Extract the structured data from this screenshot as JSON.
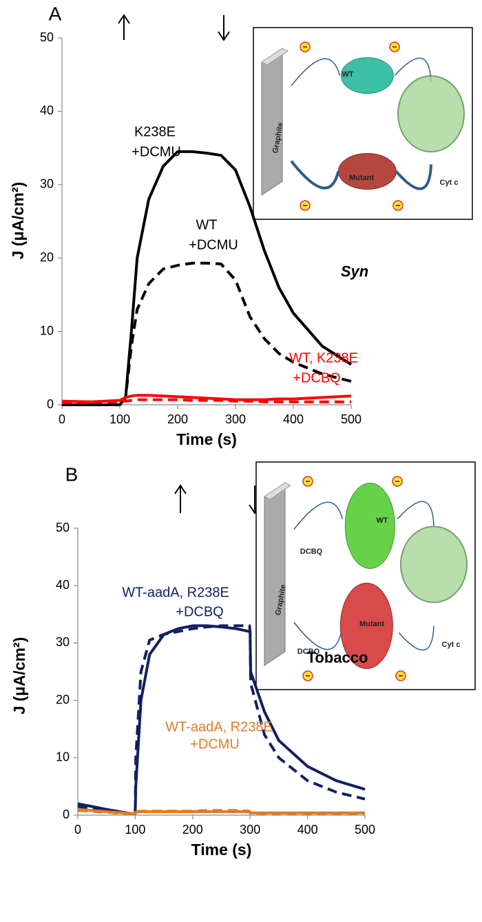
{
  "chart_data": [
    {
      "type": "line",
      "panel_label": "A",
      "xlabel": "Time (s)",
      "ylabel": "J (μA/cm²)",
      "xlim": [
        0,
        500
      ],
      "xticks": [
        0,
        100,
        200,
        300,
        400,
        500
      ],
      "ylim": [
        0,
        50
      ],
      "yticks": [
        0,
        10,
        20,
        30,
        40,
        50
      ],
      "x": [
        0,
        50,
        100,
        110,
        120,
        130,
        150,
        175,
        200,
        225,
        250,
        275,
        300,
        325,
        350,
        375,
        400,
        450,
        500
      ],
      "series": [
        {
          "color": "#000000",
          "dash": false,
          "values": [
            0,
            0,
            0,
            1,
            10,
            20,
            28,
            32.5,
            34.5,
            34.5,
            34.3,
            34,
            32,
            27,
            21,
            16,
            12.5,
            8,
            5.5
          ]
        },
        {
          "color": "#000000",
          "dash": true,
          "values": [
            0,
            0,
            0,
            1,
            8,
            13,
            16.5,
            18.5,
            19,
            19.3,
            19.3,
            19.2,
            17,
            12,
            9,
            7,
            5.8,
            4.2,
            3.2
          ]
        },
        {
          "color": "#ff0000",
          "dash": false,
          "values": [
            0.5,
            0.4,
            0.6,
            1,
            1.2,
            1.3,
            1.3,
            1.2,
            1.1,
            1,
            0.9,
            0.8,
            0.7,
            0.7,
            0.7,
            0.8,
            0.8,
            1,
            1.2
          ]
        },
        {
          "color": "#ff0000",
          "dash": true,
          "values": [
            0.3,
            0.3,
            0.4,
            0.5,
            0.6,
            0.7,
            0.7,
            0.7,
            0.7,
            0.6,
            0.6,
            0.6,
            0.5,
            0.5,
            0.4,
            0.4,
            0.4,
            0.4,
            0.4
          ]
        }
      ],
      "annotations": [
        {
          "lines": [
            "K238E",
            "+DCMU"
          ],
          "color": "#000000"
        },
        {
          "lines": [
            "WT",
            "+DCMU"
          ],
          "color": "#000000"
        },
        {
          "lines": [
            "WT, K238E",
            "+DCBQ"
          ],
          "color": "#ff0000"
        },
        {
          "lines": [
            "Syn"
          ],
          "color": "#000000"
        }
      ],
      "inset_labels": [
        "WT",
        "Graphite",
        "Mutant",
        "Cyt c"
      ]
    },
    {
      "type": "line",
      "panel_label": "B",
      "xlabel": "Time (s)",
      "ylabel": "J (μA/cm²)",
      "xlim": [
        0,
        500
      ],
      "xticks": [
        0,
        100,
        200,
        300,
        400,
        500
      ],
      "ylim": [
        0,
        50
      ],
      "yticks": [
        0,
        10,
        20,
        30,
        40,
        50
      ],
      "x": [
        0,
        50,
        90,
        100,
        101,
        110,
        125,
        150,
        175,
        200,
        225,
        250,
        275,
        299,
        300,
        301,
        325,
        350,
        400,
        450,
        500
      ],
      "series": [
        {
          "color": "#0f2160",
          "dash": false,
          "values": [
            2,
            1,
            0.3,
            0.3,
            5,
            20,
            28,
            31.5,
            32.5,
            33,
            33,
            32.8,
            32.5,
            32,
            32,
            25,
            18,
            13,
            8.5,
            6,
            4.5
          ]
        },
        {
          "color": "#0f2160",
          "dash": true,
          "values": [
            1.5,
            0.8,
            0.3,
            0.3,
            10,
            25,
            30.5,
            31.5,
            32,
            32.5,
            32.8,
            33,
            33,
            33,
            32,
            23,
            14,
            10,
            6,
            4,
            2.8
          ]
        },
        {
          "color": "#e07b22",
          "dash": false,
          "values": [
            1,
            0.6,
            0.3,
            0.3,
            0.5,
            0.6,
            0.6,
            0.6,
            0.6,
            0.6,
            0.6,
            0.6,
            0.6,
            0.6,
            0.4,
            0.4,
            0.4,
            0.4,
            0.4,
            0.4,
            0.4
          ]
        },
        {
          "color": "#e07b22",
          "dash": true,
          "values": [
            0.8,
            0.5,
            0.2,
            0.3,
            0.6,
            0.7,
            0.7,
            0.7,
            0.7,
            0.7,
            0.8,
            0.8,
            0.8,
            0.7,
            0.4,
            0.3,
            0.3,
            0.3,
            0.3,
            0.3,
            0.3
          ]
        }
      ],
      "annotations": [
        {
          "lines": [
            "WT-aadA, R238E",
            "+DCBQ"
          ],
          "color": "#0f2160"
        },
        {
          "lines": [
            "WT-aadA, R238E",
            "+DCMU"
          ],
          "color": "#e07b22"
        },
        {
          "lines": [
            "Tobacco"
          ],
          "color": "#000000"
        }
      ],
      "inset_labels": [
        "WT",
        "Graphite",
        "Mutant",
        "Cyt c",
        "DCBQ",
        "DCBQ"
      ]
    }
  ]
}
